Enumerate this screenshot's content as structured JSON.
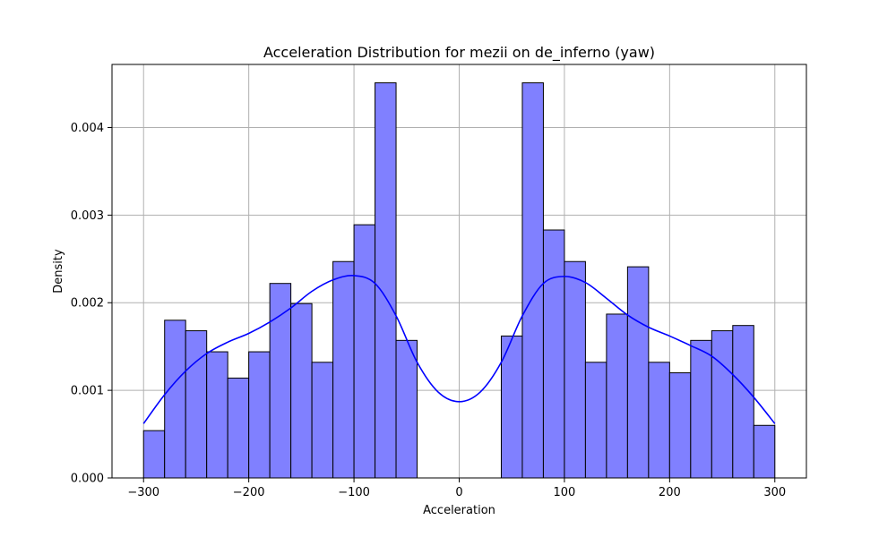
{
  "chart_data": {
    "type": "bar",
    "title": "Acceleration Distribution for mezii on de_inferno (yaw)",
    "xlabel": "Acceleration",
    "ylabel": "Density",
    "xlim": [
      -330,
      330
    ],
    "ylim": [
      0,
      0.00472
    ],
    "xticks": [
      -300,
      -200,
      -100,
      0,
      100,
      200,
      300
    ],
    "xtick_labels": [
      "−300",
      "−200",
      "−100",
      "0",
      "100",
      "200",
      "300"
    ],
    "yticks": [
      0,
      0.001,
      0.002,
      0.003,
      0.004
    ],
    "ytick_labels": [
      "0.000",
      "0.001",
      "0.002",
      "0.003",
      "0.004"
    ],
    "grid": true,
    "bar_color": "#8080ff",
    "bar_edge_color": "#000000",
    "kde_color": "#0000ff",
    "bins": {
      "start": -300,
      "width": 20,
      "densities": [
        0.00054,
        0.0018,
        0.00168,
        0.00144,
        0.00114,
        0.00144,
        0.00222,
        0.00199,
        0.00132,
        0.00247,
        0.00289,
        0.00451,
        0.00157,
        0,
        0,
        0,
        0,
        0.00162,
        0.00451,
        0.00283,
        0.00247,
        0.00132,
        0.00187,
        0.00241,
        0.00132,
        0.0012,
        0.00157,
        0.00168,
        0.00174,
        0.0006
      ]
    },
    "kde": {
      "x": [
        -300,
        -280,
        -260,
        -240,
        -220,
        -200,
        -180,
        -160,
        -140,
        -120,
        -100,
        -80,
        -60,
        -40,
        -20,
        0,
        20,
        40,
        60,
        80,
        100,
        120,
        140,
        160,
        180,
        200,
        220,
        240,
        260,
        280,
        300
      ],
      "y": [
        0.00062,
        0.00095,
        0.00122,
        0.00142,
        0.00155,
        0.00165,
        0.00178,
        0.00194,
        0.00213,
        0.00226,
        0.00231,
        0.00222,
        0.00185,
        0.00132,
        0.00098,
        0.00087,
        0.00098,
        0.00132,
        0.00185,
        0.00222,
        0.0023,
        0.00223,
        0.00205,
        0.00186,
        0.00172,
        0.00162,
        0.00151,
        0.00139,
        0.00118,
        0.00092,
        0.00062
      ]
    }
  }
}
